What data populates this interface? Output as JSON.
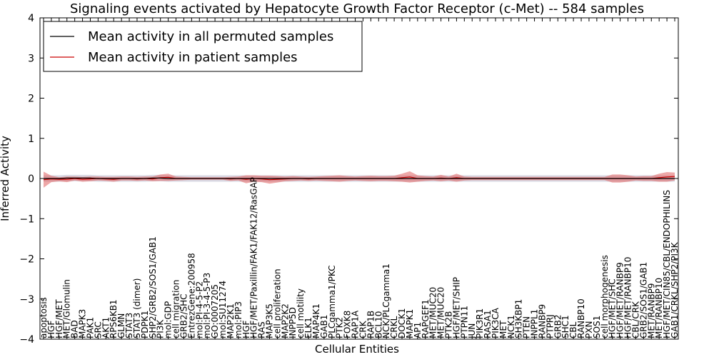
{
  "chart_data": {
    "type": "line",
    "title": "Signaling events activated by Hepatocyte Growth Factor Receptor (c-Met) -- 584 samples",
    "xlabel": "Cellular Entities",
    "ylabel": "Inferred Activity",
    "ylim": [
      -4,
      4
    ],
    "yticks": [
      4,
      3,
      2,
      1,
      0,
      -1,
      -2,
      -3,
      -4
    ],
    "ytick_labels": [
      "4",
      "3",
      "2",
      "1",
      "0",
      "−1",
      "−2",
      "−3",
      "−4"
    ],
    "legend_position": "top-left",
    "categories": [
      "apoptosis",
      "HGF",
      "HGF/MET",
      "MET/Glomulin",
      "BAD",
      "MAPK3",
      "PAK1",
      "SRC",
      "AKT1",
      "RPS6KB1",
      "GLMN",
      "STAT3",
      "STAT3 (dimer)",
      "PDPK1",
      "SHP2/GRB2/SOS1/GAB1",
      "PI3K",
      "mol:GDP",
      "cell migration",
      "GRB2/SHC",
      "EntrezGene:200958",
      "mol:PI-4-5-P2",
      "mol:PI-3-4-5-P3",
      "GO:0007205",
      "mol:SU11274",
      "MAP2K1",
      "mol:PIP3",
      "HGF",
      "HGF/MET/Paxillin/FAK1/FAK12/RasGAP",
      "RAS",
      "MAP3K5",
      "cell proliferation",
      "MAP2K2",
      "INPP5D",
      "cell motility",
      "ELK1",
      "MAP4K1",
      "GAB1",
      "PLCgamma1/PKC",
      "PTK2",
      "FOXK8",
      "RAP1A",
      "CRK",
      "RAP1B",
      "BCL10",
      "NCK/PLCgamma1",
      "CRKL",
      "DOCK1",
      "MAPK1",
      "AP1",
      "RAPGEF1",
      "MET/MUC20",
      "MET/MUC20",
      "PTK2B",
      "HGF/MET/SHIP",
      "PTPN11",
      "JUN",
      "PIK3R1",
      "RASA1",
      "PIK3CA",
      "MET",
      "NCK1",
      "SH3KBP1",
      "PTEN",
      "INPPL1",
      "RANBP9",
      "PTPRJ",
      "GRB2",
      "SHC1",
      "CBL",
      "RANBP10",
      "PXN",
      "SOS1",
      "cell morphogenesis",
      "HGF/MET/SHC",
      "HGF/MET/RANBP9",
      "HGF/MET/RANBP10",
      "CBL/CRK",
      "GRB2/SOS1/GAB1",
      "MET/RANBP9",
      "MET/RANBP10",
      "HGF/MET/CIN85/CBL/ENDOPHILINS",
      "GAB1/CRKL/SHP2/PI3K"
    ],
    "series": [
      {
        "name": "Mean activity in all permuted samples",
        "color": "#000000",
        "values": [
          0.0,
          0.0,
          0.0,
          0.01,
          0.01,
          0.01,
          0.01,
          0.0,
          0.0,
          0.0,
          0.0,
          0.0,
          0.0,
          0.0,
          0.01,
          0.01,
          0.0,
          0.0,
          0.0,
          0.0,
          0.0,
          0.0,
          0.0,
          0.0,
          0.0,
          0.0,
          0.0,
          0.0,
          0.0,
          0.0,
          0.0,
          0.0,
          0.0,
          0.0,
          0.0,
          0.0,
          0.0,
          0.0,
          0.0,
          0.0,
          0.0,
          0.0,
          0.0,
          0.0,
          0.0,
          0.0,
          0.0,
          0.0,
          0.0,
          0.0,
          0.0,
          0.0,
          0.0,
          0.0,
          0.0,
          0.0,
          0.0,
          0.0,
          0.0,
          0.0,
          0.0,
          0.0,
          0.0,
          0.0,
          0.0,
          0.0,
          0.0,
          0.0,
          0.0,
          0.0,
          0.0,
          0.0,
          0.0,
          0.0,
          0.0,
          0.0,
          0.0,
          0.0,
          0.0,
          0.0,
          0.0,
          0.0
        ],
        "band": 0.08
      },
      {
        "name": "Mean activity in patient samples",
        "color": "#cc0000",
        "values": [
          -0.03,
          -0.01,
          -0.02,
          -0.02,
          0.0,
          -0.02,
          -0.01,
          0.0,
          -0.01,
          -0.02,
          0.0,
          0.0,
          -0.01,
          0.0,
          -0.01,
          0.02,
          0.03,
          0.0,
          0.0,
          0.0,
          0.0,
          0.0,
          0.0,
          0.0,
          -0.01,
          0.0,
          -0.02,
          0.0,
          -0.01,
          -0.03,
          -0.02,
          -0.01,
          0.0,
          0.0,
          -0.01,
          0.0,
          0.0,
          0.0,
          0.0,
          0.0,
          0.0,
          0.0,
          0.0,
          0.0,
          0.0,
          0.0,
          0.02,
          0.04,
          0.0,
          0.0,
          0.0,
          0.01,
          0.0,
          0.02,
          0.0,
          0.0,
          0.0,
          0.0,
          0.0,
          0.0,
          0.0,
          0.0,
          0.0,
          0.0,
          0.0,
          0.0,
          0.0,
          0.0,
          0.0,
          0.0,
          0.0,
          0.0,
          0.0,
          0.0,
          0.0,
          0.0,
          0.0,
          0.0,
          0.0,
          0.02,
          0.04,
          0.05
        ],
        "band": [
          0.2,
          0.08,
          0.05,
          0.07,
          0.05,
          0.06,
          0.06,
          0.05,
          0.05,
          0.06,
          0.05,
          0.05,
          0.05,
          0.05,
          0.06,
          0.08,
          0.09,
          0.05,
          0.04,
          0.03,
          0.03,
          0.03,
          0.03,
          0.03,
          0.05,
          0.05,
          0.1,
          0.08,
          0.08,
          0.1,
          0.08,
          0.06,
          0.06,
          0.05,
          0.05,
          0.05,
          0.06,
          0.07,
          0.08,
          0.06,
          0.05,
          0.06,
          0.07,
          0.06,
          0.06,
          0.07,
          0.1,
          0.14,
          0.08,
          0.06,
          0.05,
          0.08,
          0.05,
          0.1,
          0.05,
          0.04,
          0.04,
          0.04,
          0.04,
          0.04,
          0.04,
          0.04,
          0.04,
          0.04,
          0.04,
          0.04,
          0.04,
          0.04,
          0.04,
          0.04,
          0.04,
          0.04,
          0.04,
          0.1,
          0.1,
          0.08,
          0.05,
          0.06,
          0.06,
          0.1,
          0.12,
          0.1
        ]
      }
    ]
  }
}
